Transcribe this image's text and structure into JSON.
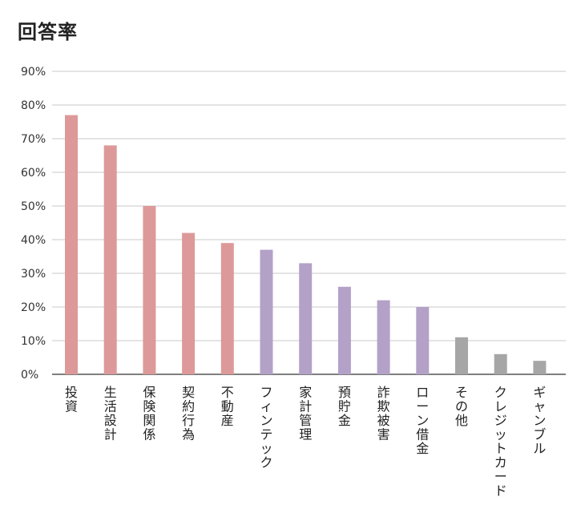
{
  "chart_data": {
    "type": "bar",
    "title": "回答率",
    "xlabel": "",
    "ylabel": "",
    "ylim": [
      0,
      90
    ],
    "yticks": [
      "0%",
      "10%",
      "20%",
      "30%",
      "40%",
      "50%",
      "60%",
      "70%",
      "80%",
      "90%"
    ],
    "grid": true,
    "categories": [
      "投資",
      "生活設計",
      "保険関係",
      "契約行為",
      "不動産",
      "フィンテック",
      "家計管理",
      "預貯金",
      "詐欺被害",
      "ローン借金",
      "その他",
      "クレジットカード",
      "ギャンブル"
    ],
    "values": [
      77,
      68,
      50,
      42,
      39,
      37,
      33,
      26,
      22,
      20,
      11,
      6,
      4
    ],
    "colors": [
      "#dd9999",
      "#dd9999",
      "#dd9999",
      "#dd9999",
      "#dd9999",
      "#b3a1c8",
      "#b3a1c8",
      "#b3a1c8",
      "#b3a1c8",
      "#b3a1c8",
      "#a6a6a6",
      "#a6a6a6",
      "#a6a6a6"
    ]
  }
}
